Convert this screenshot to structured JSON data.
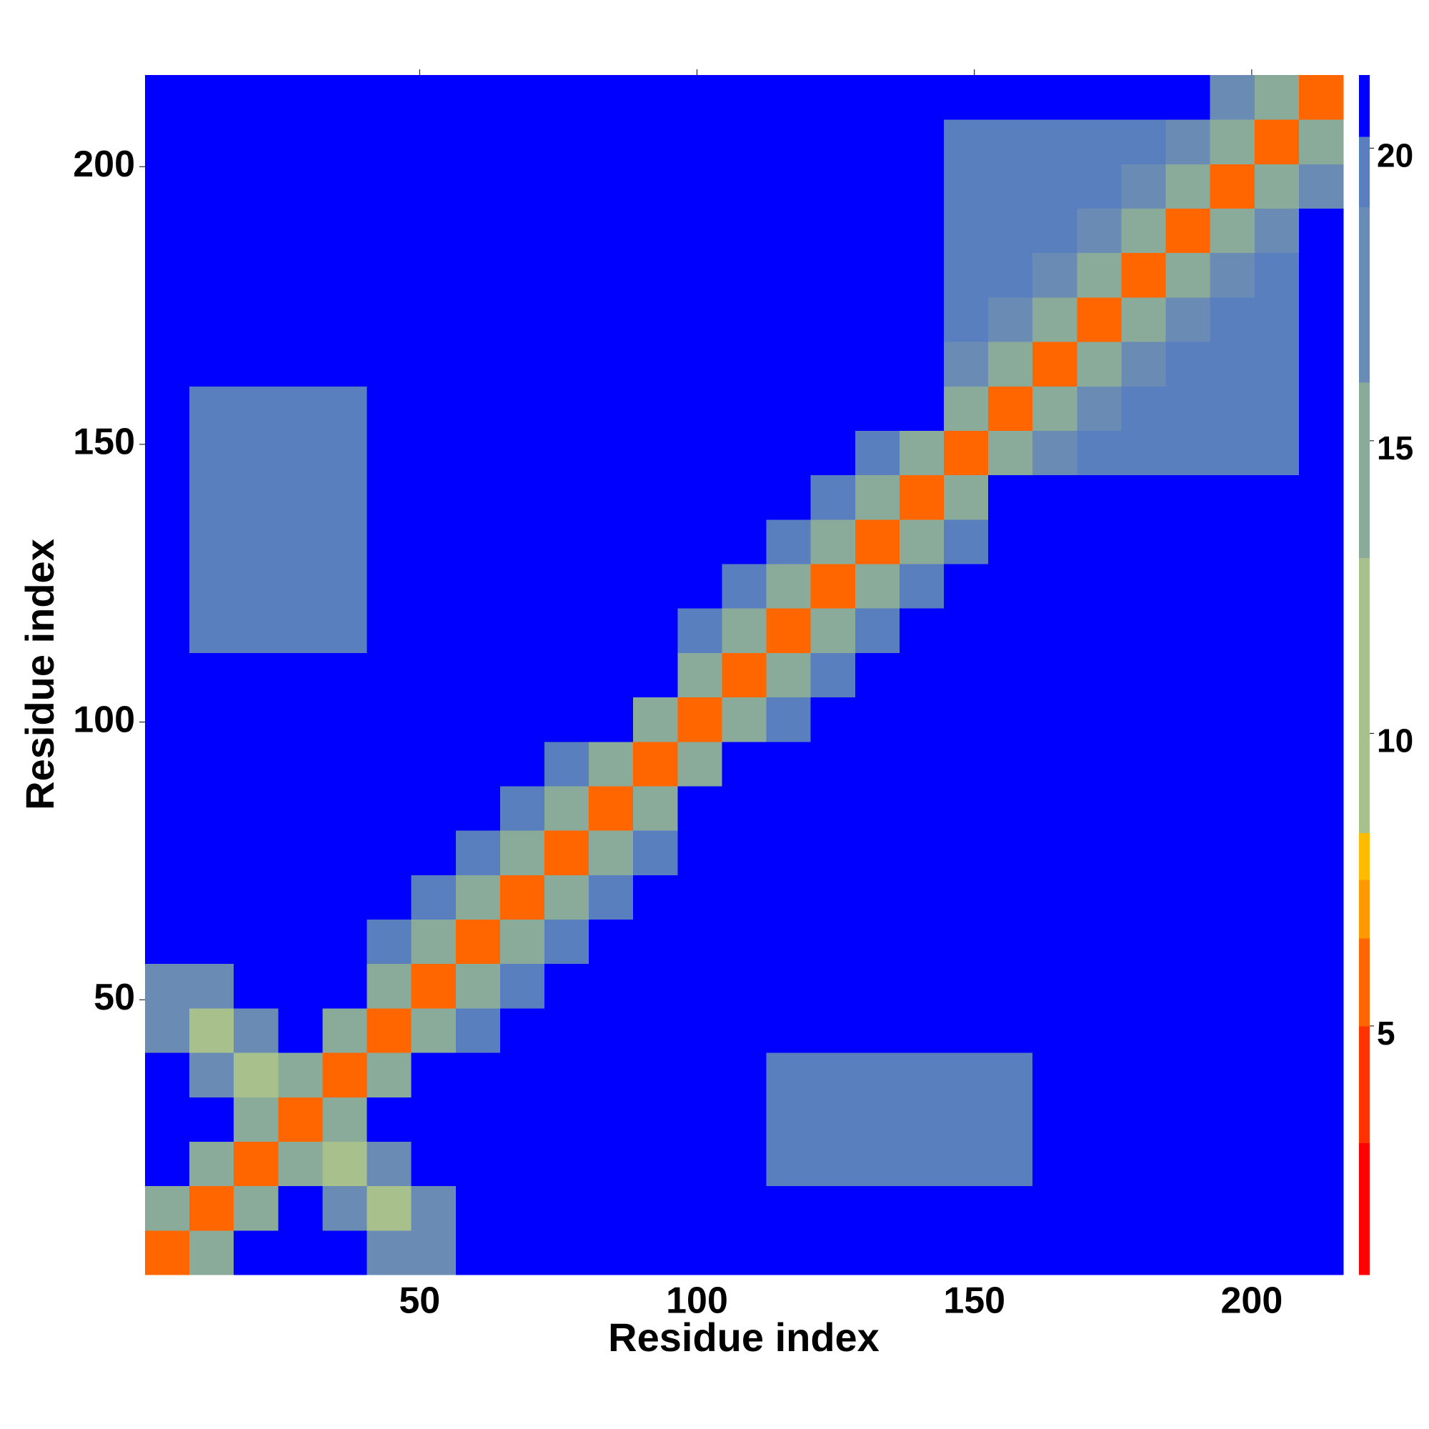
{
  "chart_data": {
    "type": "heatmap",
    "xlabel": "Residue index",
    "ylabel": "Residue index",
    "xlim": [
      0.5,
      216.5
    ],
    "ylim": [
      0.5,
      216.5
    ],
    "xticks": [
      50,
      100,
      150,
      200
    ],
    "yticks": [
      50,
      100,
      150,
      200
    ],
    "clim": [
      0.75,
      21.25
    ],
    "cticks": [
      5,
      10,
      15,
      20
    ],
    "colorscale": [
      [
        0.75,
        "#ff0000"
      ],
      [
        3,
        "#ff3300"
      ],
      [
        5,
        "#ff6600"
      ],
      [
        6.5,
        "#ff9900"
      ],
      [
        7.5,
        "#ffbb00"
      ],
      [
        8.3,
        "#a8c08c"
      ],
      [
        13,
        "#8aaa9a"
      ],
      [
        16,
        "#6a8cb4"
      ],
      [
        19,
        "#5a7fbf"
      ],
      [
        20.2,
        "#0000ff"
      ]
    ],
    "z": [
      [
        6,
        15,
        21,
        21,
        21,
        16,
        16,
        21,
        21,
        21,
        21,
        21,
        21,
        21,
        21,
        21,
        21,
        21,
        21,
        21,
        21,
        21,
        21,
        21,
        21,
        21,
        21
      ],
      [
        15,
        6,
        15,
        21,
        16,
        10,
        16,
        21,
        21,
        21,
        21,
        21,
        21,
        21,
        21,
        21,
        21,
        21,
        21,
        21,
        21,
        21,
        21,
        21,
        21,
        21,
        21
      ],
      [
        21,
        15,
        6,
        15,
        10,
        16,
        21,
        21,
        21,
        21,
        21,
        21,
        21,
        21,
        19.5,
        19.5,
        19.5,
        19.5,
        19.5,
        19.5,
        21,
        21,
        21,
        21,
        21,
        21,
        21
      ],
      [
        21,
        21,
        15,
        6,
        15,
        21,
        21,
        21,
        21,
        21,
        21,
        21,
        21,
        21,
        19.5,
        19.5,
        19.5,
        19.5,
        19.5,
        19.5,
        21,
        21,
        21,
        21,
        21,
        21,
        21
      ],
      [
        21,
        16,
        10,
        15,
        6,
        15,
        21,
        21,
        21,
        21,
        21,
        21,
        21,
        21,
        19.5,
        19.5,
        19.5,
        19.5,
        19.5,
        19.5,
        21,
        21,
        21,
        21,
        21,
        21,
        21
      ],
      [
        16,
        10,
        16,
        21,
        15,
        6,
        15,
        19,
        21,
        21,
        21,
        21,
        21,
        21,
        21,
        21,
        21,
        21,
        21,
        21,
        21,
        21,
        21,
        21,
        21,
        21,
        21
      ],
      [
        16,
        16,
        21,
        21,
        21,
        15,
        6,
        15,
        19,
        21,
        21,
        21,
        21,
        21,
        21,
        21,
        21,
        21,
        21,
        21,
        21,
        21,
        21,
        21,
        21,
        21,
        21
      ],
      [
        21,
        21,
        21,
        21,
        21,
        19,
        15,
        6,
        15,
        19,
        21,
        21,
        21,
        21,
        21,
        21,
        21,
        21,
        21,
        21,
        21,
        21,
        21,
        21,
        21,
        21,
        21
      ],
      [
        21,
        21,
        21,
        21,
        21,
        21,
        19,
        15,
        6,
        15,
        19,
        21,
        21,
        21,
        21,
        21,
        21,
        21,
        21,
        21,
        21,
        21,
        21,
        21,
        21,
        21,
        21
      ],
      [
        21,
        21,
        21,
        21,
        21,
        21,
        21,
        19,
        15,
        6,
        15,
        19,
        21,
        21,
        21,
        21,
        21,
        21,
        21,
        21,
        21,
        21,
        21,
        21,
        21,
        21,
        21
      ],
      [
        21,
        21,
        21,
        21,
        21,
        21,
        21,
        21,
        19,
        15,
        6,
        15,
        21,
        21,
        21,
        21,
        21,
        21,
        21,
        21,
        21,
        21,
        21,
        21,
        21,
        21,
        21
      ],
      [
        21,
        21,
        21,
        21,
        21,
        21,
        21,
        21,
        21,
        19,
        15,
        6,
        15,
        21,
        21,
        21,
        21,
        21,
        21,
        21,
        21,
        21,
        21,
        21,
        21,
        21,
        21
      ],
      [
        21,
        21,
        21,
        21,
        21,
        21,
        21,
        21,
        21,
        21,
        21,
        15,
        6,
        15,
        19,
        21,
        21,
        21,
        21,
        21,
        21,
        21,
        21,
        21,
        21,
        21,
        21
      ],
      [
        21,
        21,
        21,
        21,
        21,
        21,
        21,
        21,
        21,
        21,
        21,
        21,
        15,
        6,
        15,
        19,
        21,
        21,
        21,
        21,
        21,
        21,
        21,
        21,
        21,
        21,
        21
      ],
      [
        21,
        19.5,
        19.5,
        19.5,
        19.5,
        21,
        21,
        21,
        21,
        21,
        21,
        21,
        19,
        15,
        6,
        15,
        19,
        21,
        21,
        21,
        21,
        21,
        21,
        21,
        21,
        21,
        21
      ],
      [
        21,
        19.5,
        19.5,
        19.5,
        19.5,
        21,
        21,
        21,
        21,
        21,
        21,
        21,
        21,
        19,
        15,
        6,
        13,
        19,
        21,
        21,
        21,
        21,
        21,
        21,
        21,
        21,
        21
      ],
      [
        21,
        19.5,
        19.5,
        19.5,
        19.5,
        21,
        21,
        21,
        21,
        21,
        21,
        21,
        21,
        21,
        19,
        13,
        6,
        13,
        19,
        21,
        21,
        21,
        21,
        21,
        21,
        21,
        21
      ],
      [
        21,
        19.5,
        19.5,
        19.5,
        19.5,
        21,
        21,
        21,
        21,
        21,
        21,
        21,
        21,
        21,
        21,
        19,
        13,
        6,
        13,
        21,
        21,
        21,
        21,
        21,
        21,
        21,
        21
      ],
      [
        21,
        19.5,
        19.5,
        19.5,
        19.5,
        21,
        21,
        21,
        21,
        21,
        21,
        21,
        21,
        21,
        21,
        21,
        19,
        13,
        6,
        13,
        17,
        19,
        19,
        19,
        19,
        19,
        21
      ],
      [
        21,
        19.5,
        19.5,
        19.5,
        19.5,
        21,
        21,
        21,
        21,
        21,
        21,
        21,
        21,
        21,
        21,
        21,
        21,
        21,
        13,
        6,
        15,
        17,
        19,
        19,
        19,
        19,
        21
      ],
      [
        21,
        21,
        21,
        21,
        21,
        21,
        21,
        21,
        21,
        21,
        21,
        21,
        21,
        21,
        21,
        21,
        21,
        21,
        17,
        15,
        6,
        15,
        17,
        19,
        19,
        19,
        21
      ],
      [
        21,
        21,
        21,
        21,
        21,
        21,
        21,
        21,
        21,
        21,
        21,
        21,
        21,
        21,
        21,
        21,
        21,
        21,
        19,
        17,
        15,
        6,
        15,
        17,
        19,
        19,
        21
      ],
      [
        21,
        21,
        21,
        21,
        21,
        21,
        21,
        21,
        21,
        21,
        21,
        21,
        21,
        21,
        21,
        21,
        21,
        21,
        19,
        19,
        17,
        15,
        6,
        15,
        17,
        19,
        21
      ],
      [
        21,
        21,
        21,
        21,
        21,
        21,
        21,
        21,
        21,
        21,
        21,
        21,
        21,
        21,
        21,
        21,
        21,
        21,
        19,
        19,
        19,
        17,
        15,
        6,
        15,
        17,
        21
      ],
      [
        21,
        21,
        21,
        21,
        21,
        21,
        21,
        21,
        21,
        21,
        21,
        21,
        21,
        21,
        21,
        21,
        21,
        21,
        19,
        19,
        19,
        19,
        17,
        15,
        6,
        15,
        17
      ],
      [
        21,
        21,
        21,
        21,
        21,
        21,
        21,
        21,
        21,
        21,
        21,
        21,
        21,
        21,
        21,
        21,
        21,
        21,
        19,
        19,
        19,
        19,
        19,
        17,
        15,
        6,
        15
      ],
      [
        21,
        21,
        21,
        21,
        21,
        21,
        21,
        21,
        21,
        21,
        21,
        21,
        21,
        21,
        21,
        21,
        21,
        21,
        21,
        21,
        21,
        21,
        21,
        21,
        17,
        15,
        6
      ]
    ]
  }
}
